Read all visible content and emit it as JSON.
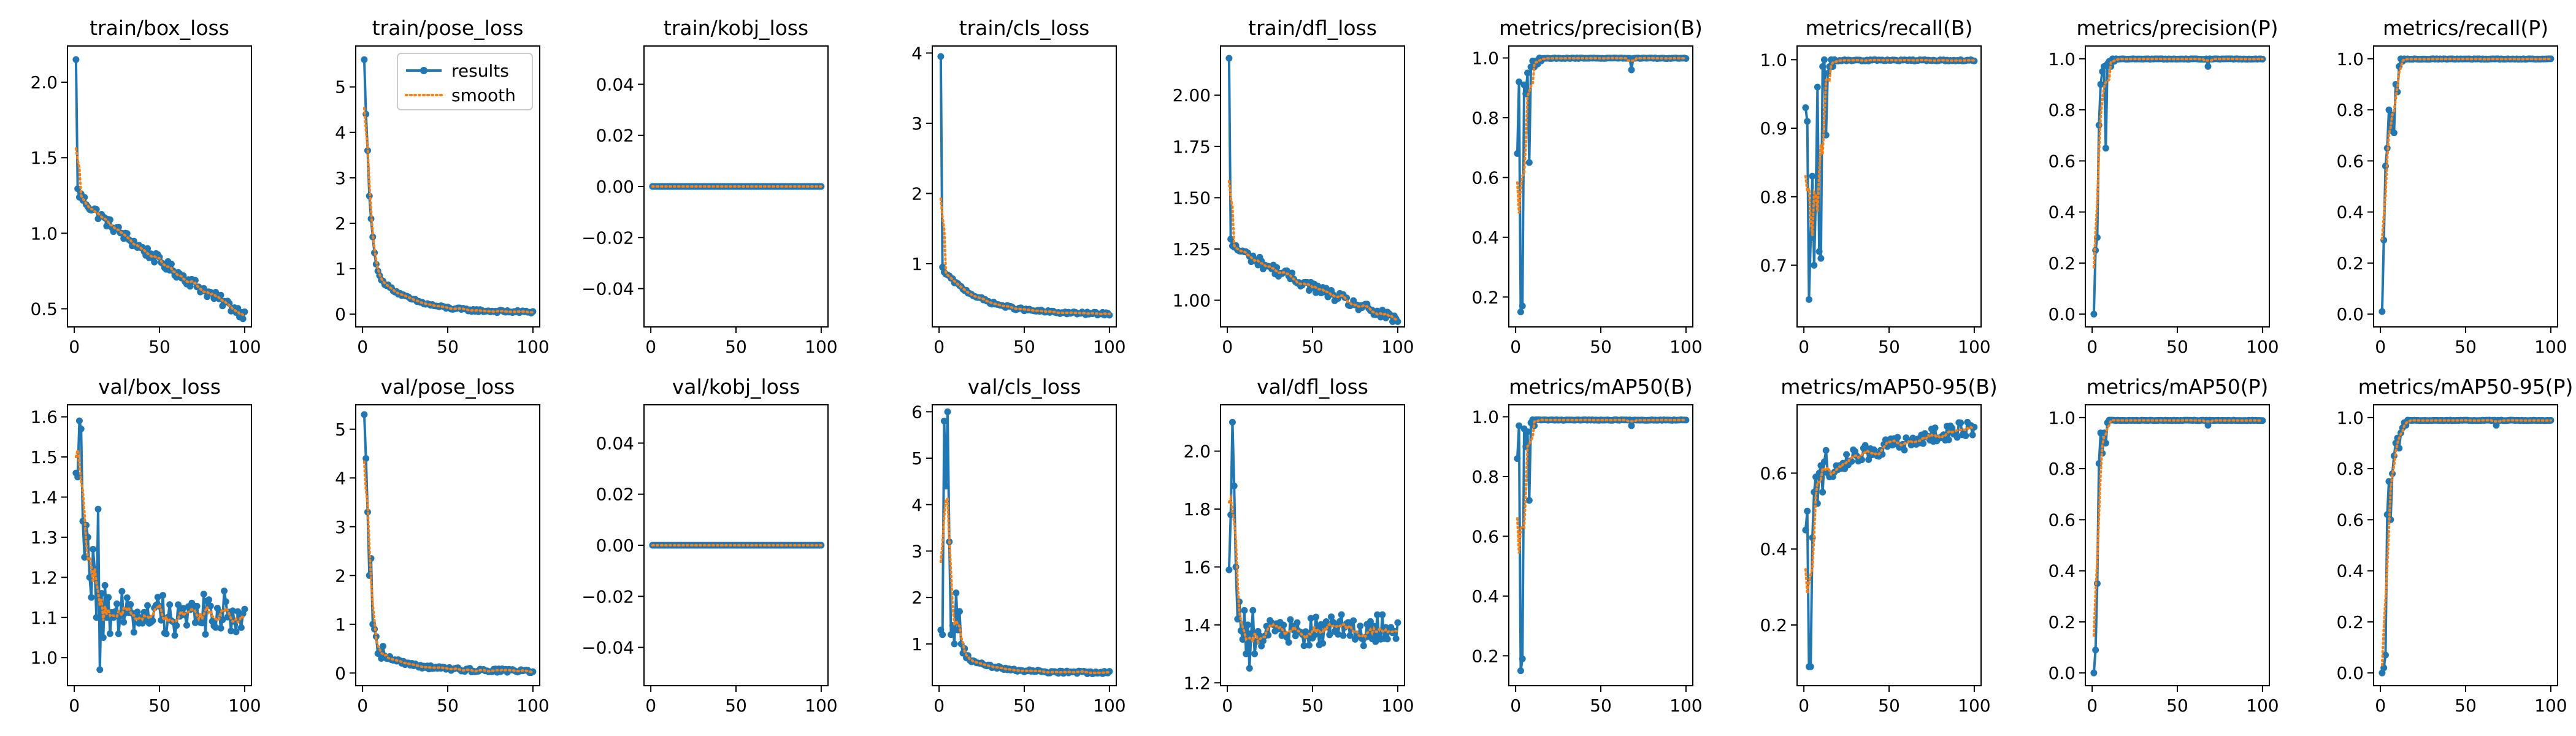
{
  "colors": {
    "results": "#1f77b4",
    "smooth": "#ff7f0e",
    "axes": "#000000",
    "background": "#ffffff"
  },
  "legend": {
    "location": "upper right",
    "panel": "train/pose_loss",
    "entries": [
      "results",
      "smooth"
    ]
  },
  "chart_data": [
    {
      "type": "line",
      "title": "train/box_loss",
      "xlim": [
        -4,
        104
      ],
      "ylim": [
        0.38,
        2.24
      ],
      "xticks": [
        0,
        50,
        100
      ],
      "yticks": [
        0.5,
        1.0,
        1.5,
        2.0
      ],
      "ytick_labels": [
        "0.5",
        "1.0",
        "1.5",
        "2.0"
      ],
      "shape": {
        "kind": "decay",
        "start": 2.15,
        "first": 1.28,
        "end": 0.46,
        "noise": 0.035,
        "pow": 0.8
      }
    },
    {
      "type": "line",
      "title": "train/pose_loss",
      "xlim": [
        -4,
        104
      ],
      "ylim": [
        -0.28,
        5.9
      ],
      "xticks": [
        0,
        50,
        100
      ],
      "yticks": [
        0,
        1,
        2,
        3,
        4,
        5
      ],
      "ytick_labels": [
        "0",
        "1",
        "2",
        "3",
        "4",
        "5"
      ],
      "shape": {
        "kind": "explicit_head",
        "head": [
          5.6,
          4.4,
          3.6,
          2.6,
          2.1,
          1.7,
          1.35,
          1.1,
          0.95,
          0.85,
          0.75
        ],
        "end": 0.04,
        "noise": 0.03
      }
    },
    {
      "type": "line",
      "title": "train/kobj_loss",
      "xlim": [
        -4,
        104
      ],
      "ylim": [
        -0.055,
        0.055
      ],
      "xticks": [
        0,
        50,
        100
      ],
      "yticks": [
        -0.04,
        -0.02,
        0.0,
        0.02,
        0.04
      ],
      "ytick_labels": [
        "−0.04",
        "−0.02",
        "0.00",
        "0.02",
        "0.04"
      ],
      "shape": {
        "kind": "constant",
        "value": 0
      }
    },
    {
      "type": "line",
      "title": "train/cls_loss",
      "xlim": [
        -4,
        104
      ],
      "ylim": [
        0.1,
        4.1
      ],
      "xticks": [
        0,
        50,
        100
      ],
      "yticks": [
        1,
        2,
        3,
        4
      ],
      "ytick_labels": [
        "1",
        "2",
        "3",
        "4"
      ],
      "shape": {
        "kind": "explicit_head",
        "head": [
          3.95,
          0.95,
          0.88,
          0.85,
          0.84
        ],
        "end": 0.28,
        "noise": 0.02
      }
    },
    {
      "type": "line",
      "title": "train/dfl_loss",
      "xlim": [
        -4,
        104
      ],
      "ylim": [
        0.87,
        2.24
      ],
      "xticks": [
        0,
        50,
        100
      ],
      "yticks": [
        1.0,
        1.25,
        1.5,
        1.75,
        2.0
      ],
      "ytick_labels": [
        "1.00",
        "1.25",
        "1.50",
        "1.75",
        "2.00"
      ],
      "shape": {
        "kind": "decay",
        "start": 2.18,
        "first": 1.28,
        "end": 0.9,
        "noise": 0.025,
        "pow": 0.8
      }
    },
    {
      "type": "line",
      "title": "metrics/precision(B)",
      "xlim": [
        -4,
        104
      ],
      "ylim": [
        0.1,
        1.04
      ],
      "xticks": [
        0,
        50,
        100
      ],
      "yticks": [
        0.2,
        0.4,
        0.6,
        0.8,
        1.0
      ],
      "ytick_labels": [
        "0.2",
        "0.4",
        "0.6",
        "0.8",
        "1.0"
      ],
      "shape": {
        "kind": "rise",
        "head": [
          0.68,
          0.92,
          0.15,
          0.17,
          0.91,
          0.88,
          0.95,
          0.65,
          0.97,
          0.99,
          0.97,
          0.99,
          0.98,
          1.0,
          0.99
        ],
        "plateau": 1.0,
        "dips": [
          [
            67,
            0.96
          ]
        ]
      }
    },
    {
      "type": "line",
      "title": "metrics/recall(B)",
      "xlim": [
        -4,
        104
      ],
      "ylim": [
        0.61,
        1.02
      ],
      "xticks": [
        0,
        50,
        100
      ],
      "yticks": [
        0.7,
        0.8,
        0.9,
        1.0
      ],
      "ytick_labels": [
        "0.7",
        "0.8",
        "0.9",
        "1.0"
      ],
      "shape": {
        "kind": "rise",
        "head": [
          0.93,
          0.91,
          0.65,
          0.74,
          0.83,
          0.7,
          0.8,
          0.96,
          0.72,
          0.71,
          0.99,
          1.0,
          0.89,
          0.98,
          0.99,
          1.0,
          0.99,
          1.0
        ],
        "plateau": 1.0,
        "dips": []
      }
    },
    {
      "type": "line",
      "title": "metrics/precision(P)",
      "xlim": [
        -4,
        104
      ],
      "ylim": [
        -0.05,
        1.05
      ],
      "xticks": [
        0,
        50,
        100
      ],
      "yticks": [
        0.0,
        0.2,
        0.4,
        0.6,
        0.8,
        1.0
      ],
      "ytick_labels": [
        "0.0",
        "0.2",
        "0.4",
        "0.6",
        "0.8",
        "1.0"
      ],
      "shape": {
        "kind": "rise",
        "head": [
          0.0,
          0.25,
          0.3,
          0.74,
          0.9,
          0.95,
          0.97,
          0.65,
          0.98,
          0.99,
          0.97,
          1.0,
          0.99,
          1.0
        ],
        "plateau": 1.0,
        "dips": [
          [
            67,
            0.97
          ]
        ]
      }
    },
    {
      "type": "line",
      "title": "metrics/recall(P)",
      "xlim": [
        -4,
        104
      ],
      "ylim": [
        -0.05,
        1.05
      ],
      "xticks": [
        0,
        50,
        100
      ],
      "yticks": [
        0.0,
        0.2,
        0.4,
        0.6,
        0.8,
        1.0
      ],
      "ytick_labels": [
        "0.0",
        "0.2",
        "0.4",
        "0.6",
        "0.8",
        "1.0"
      ],
      "shape": {
        "kind": "rise",
        "head": [
          0.01,
          0.29,
          0.58,
          0.65,
          0.8,
          0.72,
          0.78,
          0.71,
          0.9,
          0.87,
          0.97,
          1.0,
          0.99,
          1.0
        ],
        "plateau": 1.0,
        "dips": []
      }
    },
    {
      "type": "line",
      "title": "val/box_loss",
      "xlim": [
        -4,
        104
      ],
      "ylim": [
        0.93,
        1.63
      ],
      "xticks": [
        0,
        50,
        100
      ],
      "yticks": [
        1.0,
        1.1,
        1.2,
        1.3,
        1.4,
        1.5,
        1.6
      ],
      "ytick_labels": [
        "1.0",
        "1.1",
        "1.2",
        "1.3",
        "1.4",
        "1.5",
        "1.6"
      ],
      "shape": {
        "kind": "noisy",
        "head": [
          1.46,
          1.45,
          1.59,
          1.57,
          1.34,
          1.25,
          1.33,
          1.3,
          1.2,
          1.15,
          1.27,
          1.22,
          1.1,
          1.37,
          0.97,
          1.16,
          1.05,
          1.18,
          1.1,
          1.15
        ],
        "center": 1.1,
        "noise": 0.045
      }
    },
    {
      "type": "line",
      "title": "val/pose_loss",
      "xlim": [
        -4,
        104
      ],
      "ylim": [
        -0.26,
        5.5
      ],
      "xticks": [
        0,
        50,
        100
      ],
      "yticks": [
        0,
        1,
        2,
        3,
        4,
        5
      ],
      "ytick_labels": [
        "0",
        "1",
        "2",
        "3",
        "4",
        "5"
      ],
      "shape": {
        "kind": "explicit_head",
        "head": [
          5.3,
          4.4,
          3.3,
          2.0,
          2.35,
          1.0,
          0.9,
          0.75,
          0.4,
          0.45,
          0.3,
          0.55,
          0.35
        ],
        "end": 0.04,
        "noise": 0.04
      }
    },
    {
      "type": "line",
      "title": "val/kobj_loss",
      "xlim": [
        -4,
        104
      ],
      "ylim": [
        -0.055,
        0.055
      ],
      "xticks": [
        0,
        50,
        100
      ],
      "yticks": [
        -0.04,
        -0.02,
        0.0,
        0.02,
        0.04
      ],
      "ytick_labels": [
        "−0.04",
        "−0.02",
        "0.00",
        "0.02",
        "0.04"
      ],
      "shape": {
        "kind": "constant",
        "value": 0
      }
    },
    {
      "type": "line",
      "title": "val/cls_loss",
      "xlim": [
        -4,
        104
      ],
      "ylim": [
        0.1,
        6.15
      ],
      "xticks": [
        0,
        50,
        100
      ],
      "yticks": [
        1,
        2,
        3,
        4,
        5,
        6
      ],
      "ytick_labels": [
        "1",
        "2",
        "3",
        "4",
        "5",
        "6"
      ],
      "shape": {
        "kind": "explicit_head",
        "head": [
          1.3,
          1.2,
          5.8,
          4.4,
          6.0,
          3.2,
          1.2,
          1.4,
          1.0,
          2.1,
          1.3,
          1.7,
          1.0,
          0.8,
          0.9,
          0.7,
          0.75,
          0.65
        ],
        "end": 0.38,
        "noise": 0.03
      }
    },
    {
      "type": "line",
      "title": "val/dfl_loss",
      "xlim": [
        -4,
        104
      ],
      "ylim": [
        1.19,
        2.16
      ],
      "xticks": [
        0,
        50,
        100
      ],
      "yticks": [
        1.2,
        1.4,
        1.6,
        1.8,
        2.0
      ],
      "ytick_labels": [
        "1.2",
        "1.4",
        "1.6",
        "1.8",
        "2.0"
      ],
      "shape": {
        "kind": "noisy",
        "head": [
          1.59,
          1.78,
          2.1,
          1.88,
          1.6,
          1.42,
          1.48,
          1.38,
          1.35,
          1.45,
          1.3,
          1.4,
          1.25,
          1.37,
          1.45,
          1.3
        ],
        "center": 1.37,
        "noise": 0.045
      }
    },
    {
      "type": "line",
      "title": "metrics/mAP50(B)",
      "xlim": [
        -4,
        104
      ],
      "ylim": [
        0.1,
        1.04
      ],
      "xticks": [
        0,
        50,
        100
      ],
      "yticks": [
        0.2,
        0.4,
        0.6,
        0.8,
        1.0
      ],
      "ytick_labels": [
        "0.2",
        "0.4",
        "0.6",
        "0.8",
        "1.0"
      ],
      "shape": {
        "kind": "rise",
        "head": [
          0.86,
          0.97,
          0.15,
          0.19,
          0.96,
          0.9,
          0.95,
          0.72,
          0.98,
          0.99,
          0.97,
          0.99,
          0.99,
          0.99
        ],
        "plateau": 0.99,
        "dips": [
          [
            67,
            0.97
          ]
        ]
      }
    },
    {
      "type": "line",
      "title": "metrics/mAP50-95(B)",
      "xlim": [
        -4,
        104
      ],
      "ylim": [
        0.04,
        0.78
      ],
      "xticks": [
        0,
        50,
        100
      ],
      "yticks": [
        0.2,
        0.4,
        0.6
      ],
      "ytick_labels": [
        "0.2",
        "0.4",
        "0.6"
      ],
      "shape": {
        "kind": "grow",
        "head": [
          0.45,
          0.5,
          0.09,
          0.09,
          0.43,
          0.55,
          0.59,
          0.52,
          0.6,
          0.62,
          0.55,
          0.63,
          0.66,
          0.6
        ],
        "end": 0.72,
        "noise": 0.022
      }
    },
    {
      "type": "line",
      "title": "metrics/mAP50(P)",
      "xlim": [
        -4,
        104
      ],
      "ylim": [
        -0.05,
        1.05
      ],
      "xticks": [
        0,
        50,
        100
      ],
      "yticks": [
        0.0,
        0.2,
        0.4,
        0.6,
        0.8,
        1.0
      ],
      "ytick_labels": [
        "0.0",
        "0.2",
        "0.4",
        "0.6",
        "0.8",
        "1.0"
      ],
      "shape": {
        "kind": "rise",
        "head": [
          0.0,
          0.09,
          0.35,
          0.82,
          0.94,
          0.86,
          0.94,
          0.9,
          0.98,
          0.99,
          0.99,
          0.99
        ],
        "plateau": 0.99,
        "dips": [
          [
            67,
            0.97
          ]
        ]
      }
    },
    {
      "type": "line",
      "title": "metrics/mAP50-95(P)",
      "xlim": [
        -4,
        104
      ],
      "ylim": [
        -0.05,
        1.05
      ],
      "xticks": [
        0,
        50,
        100
      ],
      "yticks": [
        0.0,
        0.2,
        0.4,
        0.6,
        0.8,
        1.0
      ],
      "ytick_labels": [
        "0.0",
        "0.2",
        "0.4",
        "0.6",
        "0.8",
        "1.0"
      ],
      "shape": {
        "kind": "rise",
        "head": [
          0.0,
          0.02,
          0.07,
          0.62,
          0.75,
          0.6,
          0.78,
          0.85,
          0.9,
          0.92,
          0.88,
          0.94,
          0.96,
          0.98,
          0.97,
          0.99
        ],
        "plateau": 0.99,
        "dips": [
          [
            67,
            0.97
          ]
        ]
      }
    }
  ]
}
